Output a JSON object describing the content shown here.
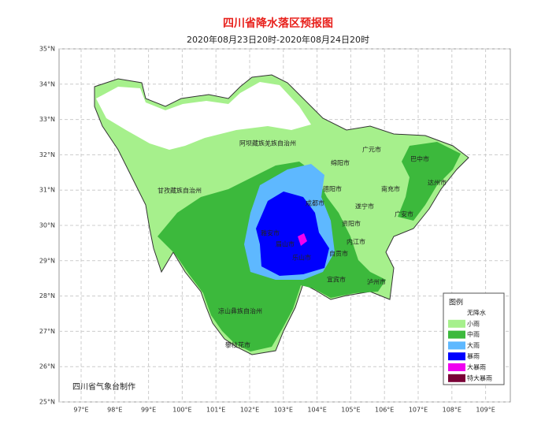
{
  "header": {
    "title": "四川省降水落区预报图",
    "subtitle": "2020年08月23日20时-2020年08月24日20时"
  },
  "axes": {
    "lat_labels": [
      "35°N",
      "34°N",
      "33°N",
      "32°N",
      "31°N",
      "30°N",
      "29°N",
      "28°N",
      "27°N",
      "26°N",
      "25°N"
    ],
    "lon_labels": [
      "97°E",
      "98°E",
      "99°E",
      "100°E",
      "101°E",
      "102°E",
      "103°E",
      "104°E",
      "105°E",
      "106°E",
      "107°E",
      "108°E",
      "109°E"
    ]
  },
  "places": [
    "阿坝藏族羌族自治州",
    "广元市",
    "巴中市",
    "绵阳市",
    "德阳市",
    "南充市",
    "达州市",
    "甘孜藏族自治州",
    "成都市",
    "遂宁市",
    "广安市",
    "资阳市",
    "雅安市",
    "乐山市",
    "内江市",
    "自贡市",
    "眉山市",
    "宜宾市",
    "泸州市",
    "凉山彝族自治州",
    "攀枝花市"
  ],
  "legend": {
    "title": "图例",
    "items": [
      {
        "label": "无降水",
        "color": "#ffffff"
      },
      {
        "label": "小雨",
        "color": "#a6f08c"
      },
      {
        "label": "中雨",
        "color": "#3cb93c"
      },
      {
        "label": "大雨",
        "color": "#5eb8ff"
      },
      {
        "label": "暴雨",
        "color": "#0000fe"
      },
      {
        "label": "大暴雨",
        "color": "#f000f0"
      },
      {
        "label": "特大暴雨",
        "color": "#7a0036"
      }
    ]
  },
  "credit": "四川省气象台制作"
}
